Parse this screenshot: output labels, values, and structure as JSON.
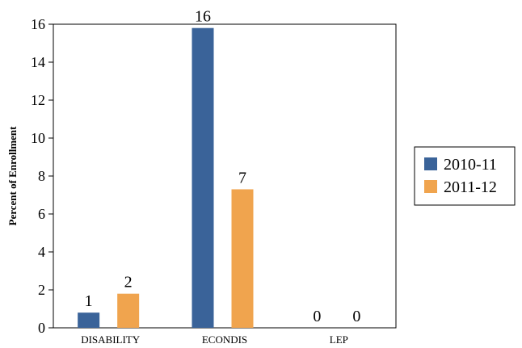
{
  "chart_data": {
    "type": "bar",
    "categories": [
      "DISABILITY",
      "ECONDIS",
      "LEP"
    ],
    "series": [
      {
        "name": "2010-11",
        "values": [
          0.8,
          15.8,
          0
        ],
        "labels": [
          "1",
          "16",
          "0"
        ],
        "color": "#3a6399"
      },
      {
        "name": "2011-12",
        "values": [
          1.8,
          7.3,
          0
        ],
        "labels": [
          "2",
          "7",
          "0"
        ],
        "color": "#f0a44e"
      }
    ],
    "ylabel": "Percent of Enrollment",
    "xlabel": "",
    "ylim": [
      0,
      16
    ],
    "yticks": [
      0,
      2,
      4,
      6,
      8,
      10,
      12,
      14,
      16
    ],
    "grid": false,
    "legend_position": "right"
  }
}
